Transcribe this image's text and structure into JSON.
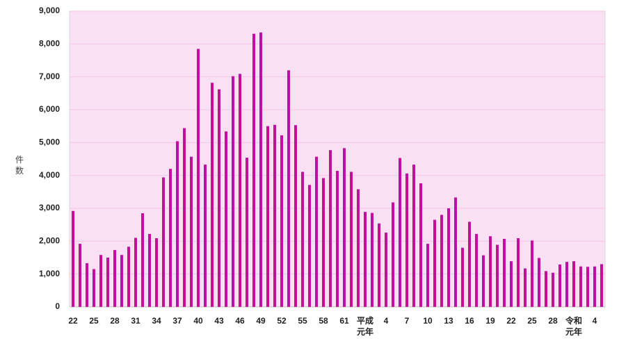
{
  "chart_data": {
    "type": "bar",
    "y_label": "件\n数",
    "categories": [
      "22",
      null,
      null,
      "25",
      null,
      null,
      "28",
      null,
      null,
      "31",
      null,
      null,
      "34",
      null,
      null,
      "37",
      null,
      null,
      "40",
      null,
      null,
      "43",
      null,
      null,
      "46",
      null,
      null,
      "49",
      null,
      null,
      "52",
      null,
      null,
      "55",
      null,
      null,
      "58",
      null,
      null,
      "61",
      null,
      null,
      "平成\n元年",
      null,
      null,
      "4",
      null,
      null,
      "7",
      null,
      null,
      "10",
      null,
      null,
      "13",
      null,
      null,
      "16",
      null,
      null,
      "19",
      null,
      null,
      "22",
      null,
      null,
      "25",
      null,
      null,
      "28",
      null,
      null,
      "令和\n元年",
      null,
      null,
      "4",
      null
    ],
    "values": [
      2920,
      1920,
      1330,
      1150,
      1580,
      1500,
      1730,
      1580,
      1830,
      2100,
      2850,
      2220,
      2090,
      3940,
      4200,
      5040,
      5440,
      4570,
      7850,
      4330,
      6820,
      6620,
      5340,
      7020,
      7090,
      4540,
      8310,
      8350,
      5500,
      5540,
      5220,
      7200,
      5530,
      4110,
      3710,
      4570,
      3920,
      4770,
      4140,
      4830,
      4110,
      3580,
      2890,
      2860,
      2540,
      2260,
      3180,
      4530,
      4060,
      4330,
      3760,
      1920,
      2650,
      2800,
      3000,
      3330,
      1800,
      2590,
      2220,
      1570,
      2150,
      1890,
      2070,
      1390,
      2090,
      1170,
      2020,
      1490,
      1090,
      1040,
      1290,
      1370,
      1390,
      1230,
      1220,
      1230,
      1300
    ],
    "color": "#c0109e",
    "ylim": [
      0,
      9000
    ],
    "yticks": [
      0,
      {
        "value": 1000,
        "label": "1,000"
      },
      {
        "value": 2000,
        "label": "2,000"
      },
      {
        "value": 3000,
        "label": "3,000"
      },
      {
        "value": 4000,
        "label": "4,000"
      },
      {
        "value": 5000,
        "label": "5,000"
      },
      {
        "value": 6000,
        "label": "6,000"
      },
      {
        "value": 7000,
        "label": "7,000"
      },
      {
        "value": 8000,
        "label": "8,000"
      },
      {
        "value": 9000,
        "label": "9,000"
      }
    ],
    "grid": true
  }
}
